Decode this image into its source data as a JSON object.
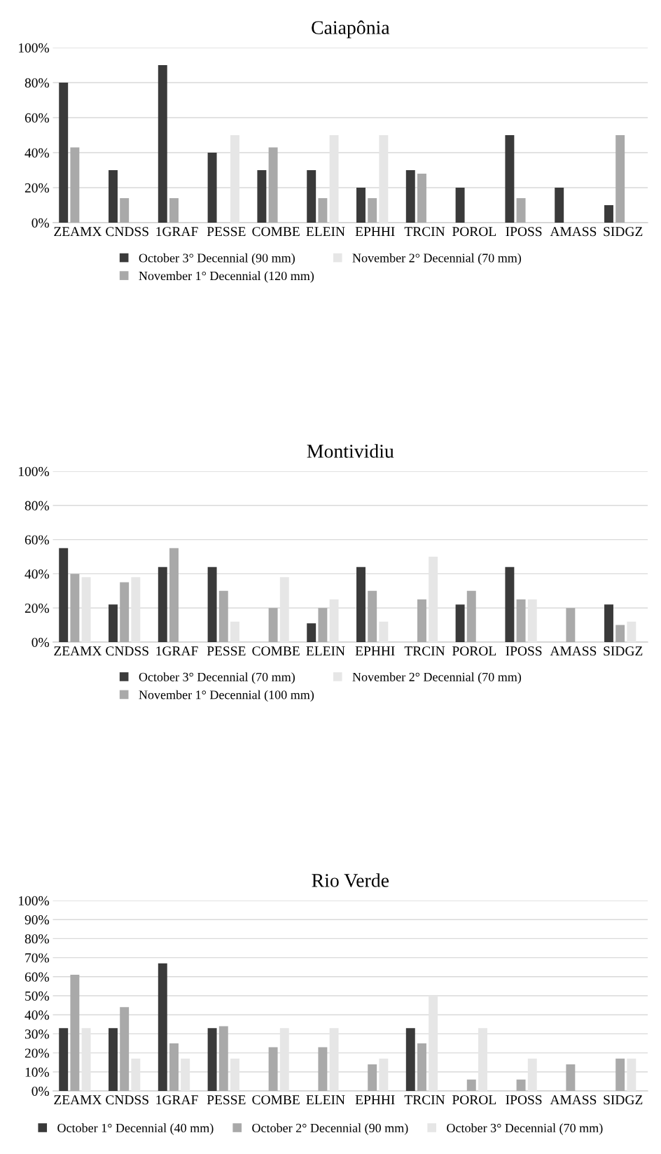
{
  "chart_data": [
    {
      "type": "bar",
      "title": "Caiapônia",
      "categories": [
        "ZEAMX",
        "CNDSS",
        "1GRAF",
        "PESSE",
        "COMBE",
        "ELEIN",
        "EPHHI",
        "TRCIN",
        "POROL",
        "IPOSS",
        "AMASS",
        "SIDGZ"
      ],
      "series": [
        {
          "name": "October 3° Decennial (90 mm)",
          "color": "#3a3a3a",
          "values": [
            80,
            30,
            90,
            40,
            30,
            30,
            20,
            30,
            20,
            50,
            20,
            10
          ]
        },
        {
          "name": "November 1° Decennial (120 mm)",
          "color": "#a9a9a9",
          "values": [
            43,
            14,
            14,
            0,
            43,
            14,
            14,
            28,
            0,
            14,
            0,
            50
          ]
        },
        {
          "name": "November 2° Decennial (70 mm)",
          "color": "#e6e6e6",
          "values": [
            0,
            0,
            0,
            50,
            0,
            50,
            50,
            0,
            0,
            0,
            0,
            0
          ]
        }
      ],
      "ylim": [
        0,
        100
      ],
      "yticks": [
        {
          "value": 0,
          "label": "0%"
        },
        {
          "value": 20,
          "label": "20%"
        },
        {
          "value": 40,
          "label": "40%"
        },
        {
          "value": 60,
          "label": "60%"
        },
        {
          "value": 80,
          "label": "80%"
        },
        {
          "value": 100,
          "label": "100%"
        }
      ],
      "grid": "y",
      "legend": "bottom"
    },
    {
      "type": "bar",
      "title": "Montividiu",
      "categories": [
        "ZEAMX",
        "CNDSS",
        "1GRAF",
        "PESSE",
        "COMBE",
        "ELEIN",
        "EPHHI",
        "TRCIN",
        "POROL",
        "IPOSS",
        "AMASS",
        "SIDGZ"
      ],
      "series": [
        {
          "name": "October 3° Decennial (70 mm)",
          "color": "#3a3a3a",
          "values": [
            55,
            22,
            44,
            44,
            0,
            11,
            44,
            0,
            22,
            44,
            0,
            22
          ]
        },
        {
          "name": "November 1° Decennial (100 mm)",
          "color": "#a9a9a9",
          "values": [
            40,
            35,
            55,
            30,
            20,
            20,
            30,
            25,
            30,
            25,
            20,
            10
          ]
        },
        {
          "name": "November 2° Decennial (70 mm)",
          "color": "#e6e6e6",
          "values": [
            38,
            38,
            0,
            12,
            38,
            25,
            12,
            50,
            0,
            25,
            0,
            12
          ]
        }
      ],
      "ylim": [
        0,
        100
      ],
      "yticks": [
        {
          "value": 0,
          "label": "0%"
        },
        {
          "value": 20,
          "label": "20%"
        },
        {
          "value": 40,
          "label": "40%"
        },
        {
          "value": 60,
          "label": "60%"
        },
        {
          "value": 80,
          "label": "80%"
        },
        {
          "value": 100,
          "label": "100%"
        }
      ],
      "grid": "y",
      "legend": "bottom"
    },
    {
      "type": "bar",
      "title": "Rio Verde",
      "categories": [
        "ZEAMX",
        "CNDSS",
        "1GRAF",
        "PESSE",
        "COMBE",
        "ELEIN",
        "EPHHI",
        "TRCIN",
        "POROL",
        "IPOSS",
        "AMASS",
        "SIDGZ"
      ],
      "series": [
        {
          "name": "October 1° Decennial (40 mm)",
          "color": "#3a3a3a",
          "values": [
            33,
            33,
            67,
            33,
            0,
            0,
            0,
            33,
            0,
            0,
            0,
            0
          ]
        },
        {
          "name": "October 2° Decennial (90 mm)",
          "color": "#a9a9a9",
          "values": [
            61,
            44,
            25,
            34,
            23,
            23,
            14,
            25,
            6,
            6,
            14,
            17
          ]
        },
        {
          "name": "October 3° Decennial (70 mm)",
          "color": "#e6e6e6",
          "values": [
            33,
            17,
            17,
            17,
            33,
            33,
            17,
            50,
            33,
            17,
            0,
            17
          ]
        }
      ],
      "ylim": [
        0,
        100
      ],
      "yticks": [
        {
          "value": 0,
          "label": "0%"
        },
        {
          "value": 10,
          "label": "10%"
        },
        {
          "value": 20,
          "label": "20%"
        },
        {
          "value": 30,
          "label": "30%"
        },
        {
          "value": 40,
          "label": "40%"
        },
        {
          "value": 50,
          "label": "50%"
        },
        {
          "value": 60,
          "label": "60%"
        },
        {
          "value": 70,
          "label": "70%"
        },
        {
          "value": 80,
          "label": "80%"
        },
        {
          "value": 90,
          "label": "90%"
        },
        {
          "value": 100,
          "label": "100%"
        }
      ],
      "grid": "y",
      "legend": "bottom"
    }
  ]
}
